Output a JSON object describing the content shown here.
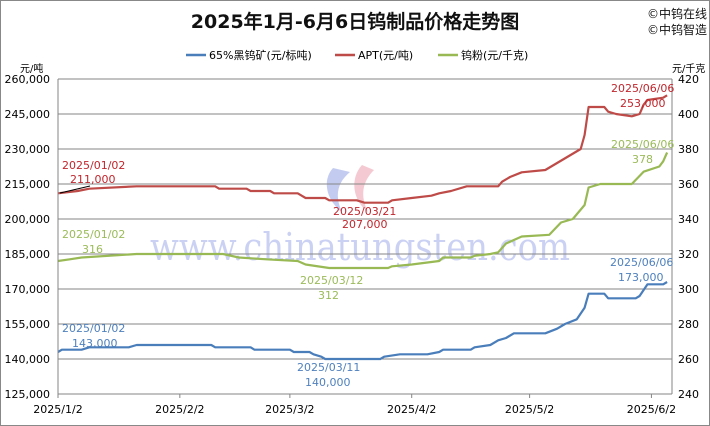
{
  "chart_data": {
    "type": "line",
    "title": "2025年1月-6月6日钨制品价格走势图",
    "copyright": [
      "©中钨在线",
      "©中钨智造"
    ],
    "watermark": "www.chinatungsten.com",
    "left_axis": {
      "unit": "元/吨",
      "ylim": [
        125000,
        260000
      ],
      "ticks": [
        "125,000",
        "140,000",
        "155,000",
        "170,000",
        "185,000",
        "200,000",
        "215,000",
        "230,000",
        "245,000",
        "260,000"
      ]
    },
    "right_axis": {
      "unit": "元/千克",
      "ylim": [
        240,
        420
      ],
      "ticks": [
        "240",
        "260",
        "280",
        "300",
        "320",
        "340",
        "360",
        "380",
        "400",
        "420"
      ]
    },
    "x_ticks": [
      "2025/1/2",
      "2025/2/2",
      "2025/3/2",
      "2025/4/2",
      "2025/5/2",
      "2025/6/2"
    ],
    "grid": true,
    "legend_position": "top",
    "series": [
      {
        "name": "65%黑钨矿(元/标吨)",
        "axis": "left",
        "color": "#4a7ebb",
        "points": [
          [
            "2025-01-02",
            143000
          ],
          [
            "2025-01-03",
            144000
          ],
          [
            "2025-01-08",
            144000
          ],
          [
            "2025-01-10",
            145000
          ],
          [
            "2025-01-20",
            145000
          ],
          [
            "2025-01-22",
            146000
          ],
          [
            "2025-02-10",
            146000
          ],
          [
            "2025-02-11",
            145000
          ],
          [
            "2025-02-20",
            145000
          ],
          [
            "2025-02-21",
            144000
          ],
          [
            "2025-03-02",
            144000
          ],
          [
            "2025-03-03",
            143000
          ],
          [
            "2025-03-07",
            143000
          ],
          [
            "2025-03-08",
            142000
          ],
          [
            "2025-03-10",
            141000
          ],
          [
            "2025-03-11",
            140000
          ],
          [
            "2025-03-25",
            140000
          ],
          [
            "2025-03-26",
            141000
          ],
          [
            "2025-03-30",
            142000
          ],
          [
            "2025-04-06",
            142000
          ],
          [
            "2025-04-09",
            143000
          ],
          [
            "2025-04-10",
            144000
          ],
          [
            "2025-04-17",
            144000
          ],
          [
            "2025-04-18",
            145000
          ],
          [
            "2025-04-22",
            146000
          ],
          [
            "2025-04-24",
            148000
          ],
          [
            "2025-04-26",
            149000
          ],
          [
            "2025-04-28",
            151000
          ],
          [
            "2025-05-06",
            151000
          ],
          [
            "2025-05-09",
            153000
          ],
          [
            "2025-05-11",
            155000
          ],
          [
            "2025-05-14",
            157000
          ],
          [
            "2025-05-16",
            162000
          ],
          [
            "2025-05-17",
            168000
          ],
          [
            "2025-05-21",
            168000
          ],
          [
            "2025-05-22",
            166000
          ],
          [
            "2025-05-29",
            166000
          ],
          [
            "2025-05-30",
            167000
          ],
          [
            "2025-06-01",
            172000
          ],
          [
            "2025-06-05",
            172000
          ],
          [
            "2025-06-06",
            173000
          ]
        ]
      },
      {
        "name": "APT(元/吨)",
        "axis": "left",
        "color": "#be4b48",
        "points": [
          [
            "2025-01-02",
            211000
          ],
          [
            "2025-01-07",
            212000
          ],
          [
            "2025-01-10",
            213000
          ],
          [
            "2025-01-22",
            214000
          ],
          [
            "2025-02-11",
            214000
          ],
          [
            "2025-02-12",
            213000
          ],
          [
            "2025-02-19",
            213000
          ],
          [
            "2025-02-20",
            212000
          ],
          [
            "2025-02-25",
            212000
          ],
          [
            "2025-02-26",
            211000
          ],
          [
            "2025-03-04",
            211000
          ],
          [
            "2025-03-05",
            210000
          ],
          [
            "2025-03-06",
            209000
          ],
          [
            "2025-03-11",
            209000
          ],
          [
            "2025-03-12",
            208000
          ],
          [
            "2025-03-19",
            208000
          ],
          [
            "2025-03-21",
            207000
          ],
          [
            "2025-03-27",
            207000
          ],
          [
            "2025-03-28",
            208000
          ],
          [
            "2025-04-02",
            209000
          ],
          [
            "2025-04-07",
            210000
          ],
          [
            "2025-04-09",
            211000
          ],
          [
            "2025-04-12",
            212000
          ],
          [
            "2025-04-16",
            214000
          ],
          [
            "2025-04-24",
            214000
          ],
          [
            "2025-04-25",
            216000
          ],
          [
            "2025-04-27",
            218000
          ],
          [
            "2025-04-30",
            220000
          ],
          [
            "2025-05-06",
            221000
          ],
          [
            "2025-05-09",
            224000
          ],
          [
            "2025-05-12",
            227000
          ],
          [
            "2025-05-15",
            230000
          ],
          [
            "2025-05-16",
            236000
          ],
          [
            "2025-05-17",
            248000
          ],
          [
            "2025-05-21",
            248000
          ],
          [
            "2025-05-22",
            246000
          ],
          [
            "2025-05-24",
            245000
          ],
          [
            "2025-05-28",
            244000
          ],
          [
            "2025-05-30",
            245000
          ],
          [
            "2025-05-31",
            249000
          ],
          [
            "2025-06-01",
            251000
          ],
          [
            "2025-06-05",
            252000
          ],
          [
            "2025-06-06",
            253000
          ]
        ]
      },
      {
        "name": "钨粉(元/千克)",
        "axis": "right",
        "color": "#98b954",
        "points": [
          [
            "2025-01-02",
            316
          ],
          [
            "2025-01-05",
            317
          ],
          [
            "2025-01-08",
            318
          ],
          [
            "2025-01-22",
            320
          ],
          [
            "2025-02-13",
            320
          ],
          [
            "2025-02-17",
            318
          ],
          [
            "2025-02-24",
            317
          ],
          [
            "2025-03-04",
            316
          ],
          [
            "2025-03-06",
            314
          ],
          [
            "2025-03-12",
            312
          ],
          [
            "2025-03-27",
            312
          ],
          [
            "2025-03-28",
            313
          ],
          [
            "2025-04-02",
            314
          ],
          [
            "2025-04-09",
            316
          ],
          [
            "2025-04-10",
            318
          ],
          [
            "2025-04-17",
            318
          ],
          [
            "2025-04-18",
            319
          ],
          [
            "2025-04-22",
            320
          ],
          [
            "2025-04-24",
            321
          ],
          [
            "2025-04-26",
            326
          ],
          [
            "2025-04-29",
            329
          ],
          [
            "2025-04-30",
            330
          ],
          [
            "2025-05-07",
            331
          ],
          [
            "2025-05-10",
            338
          ],
          [
            "2025-05-13",
            340
          ],
          [
            "2025-05-16",
            348
          ],
          [
            "2025-05-17",
            358
          ],
          [
            "2025-05-20",
            360
          ],
          [
            "2025-05-28",
            360
          ],
          [
            "2025-05-31",
            367
          ],
          [
            "2025-06-04",
            370
          ],
          [
            "2025-06-05",
            373
          ],
          [
            "2025-06-06",
            378
          ]
        ]
      }
    ],
    "annotations": {
      "apt_start": {
        "date": "2025/01/02",
        "value": "211,000",
        "color": "#c0262d"
      },
      "apt_low": {
        "date": "2025/03/21",
        "value": "207,000",
        "color": "#c0262d"
      },
      "apt_end": {
        "date": "2025/06/06",
        "value": "253,000",
        "color": "#c0262d"
      },
      "powder_start": {
        "date": "2025/01/02",
        "value": "316",
        "color": "#9bbb59"
      },
      "powder_low": {
        "date": "2025/03/12",
        "value": "312",
        "color": "#9bbb59"
      },
      "powder_end": {
        "date": "2025/06/06",
        "value": "378",
        "color": "#9bbb59"
      },
      "ore_start": {
        "date": "2025/01/02",
        "value": "143,000",
        "color": "#4f81bd"
      },
      "ore_low": {
        "date": "2025/03/11",
        "value": "140,000",
        "color": "#4f81bd"
      },
      "ore_end": {
        "date": "2025/06/06",
        "value": "173,000",
        "color": "#4f81bd"
      }
    }
  }
}
